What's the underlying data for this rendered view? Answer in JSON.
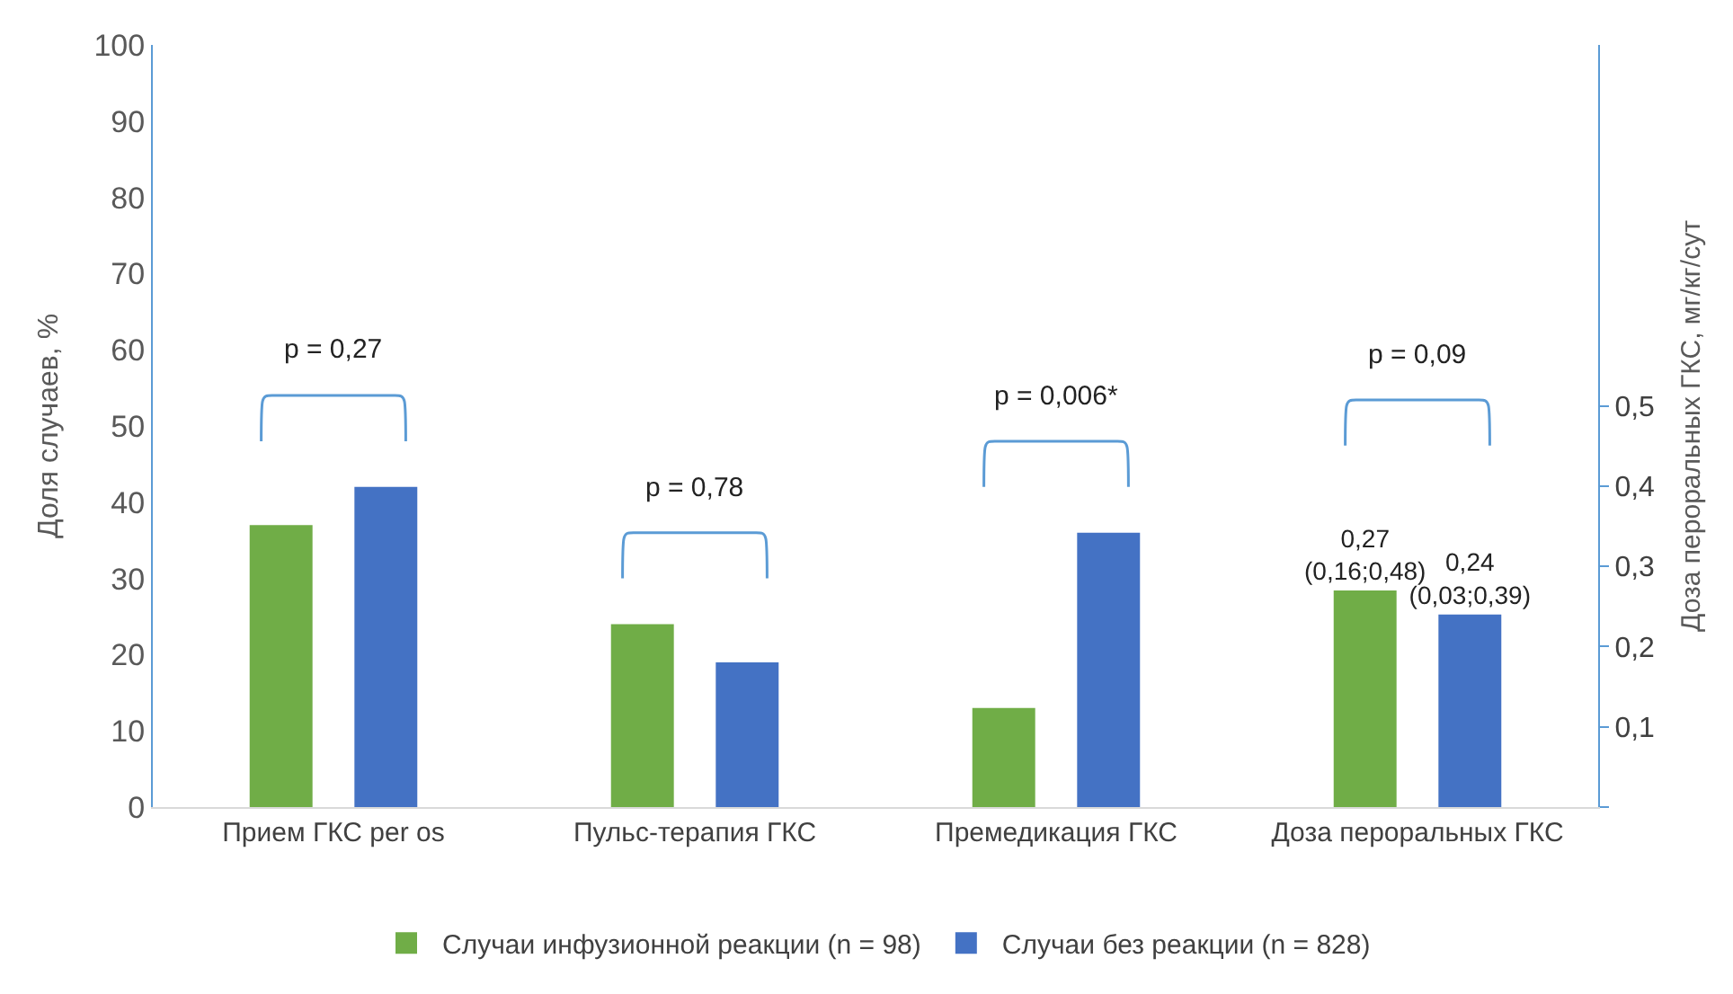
{
  "chart_data": {
    "type": "bar",
    "ylabel": "Доля случаев, %",
    "y2label": "Доза пероральных ГКС, мг/кг/сут",
    "categories": [
      "Прием ГКС per os",
      "Пульс-терапия ГКС",
      "Премедикация ГКС",
      "Доза пероральных ГКС"
    ],
    "series": [
      {
        "name": "Случаи инфузионной реакции (n = 98)",
        "color": "#70ad47",
        "values": [
          37,
          24,
          13,
          null
        ]
      },
      {
        "name": "Случаи без реакции (n = 828)",
        "color": "#4472c4",
        "values": [
          42,
          19,
          36,
          null
        ]
      },
      {
        "color": "#70ad47",
        "axis": "y2",
        "values": [
          null,
          null,
          null,
          0.27
        ],
        "value_labels": [
          null,
          null,
          null,
          "0,27\n(0,16;0,48)"
        ]
      },
      {
        "color": "#4472c4",
        "axis": "y2",
        "values": [
          null,
          null,
          null,
          0.24
        ],
        "value_labels": [
          null,
          null,
          null,
          "0,24\n(0,03;0,39)"
        ]
      }
    ],
    "ylim": [
      0,
      100
    ],
    "yticks": [
      0,
      10,
      20,
      30,
      40,
      50,
      60,
      70,
      80,
      90,
      100
    ],
    "y2lim": [
      0,
      0.95
    ],
    "y2ticks": [
      {
        "value": 0,
        "label": null
      },
      {
        "value": 0.1,
        "label": "0,1"
      },
      {
        "value": 0.2,
        "label": "0,2"
      },
      {
        "value": 0.3,
        "label": "0,3"
      },
      {
        "value": 0.4,
        "label": "0,4"
      },
      {
        "value": 0.5,
        "label": "0,5"
      }
    ],
    "annotations": [
      "p = 0,27",
      "p = 0,78",
      "p = 0,006*",
      "p = 0,09"
    ],
    "legend": "bottom"
  }
}
